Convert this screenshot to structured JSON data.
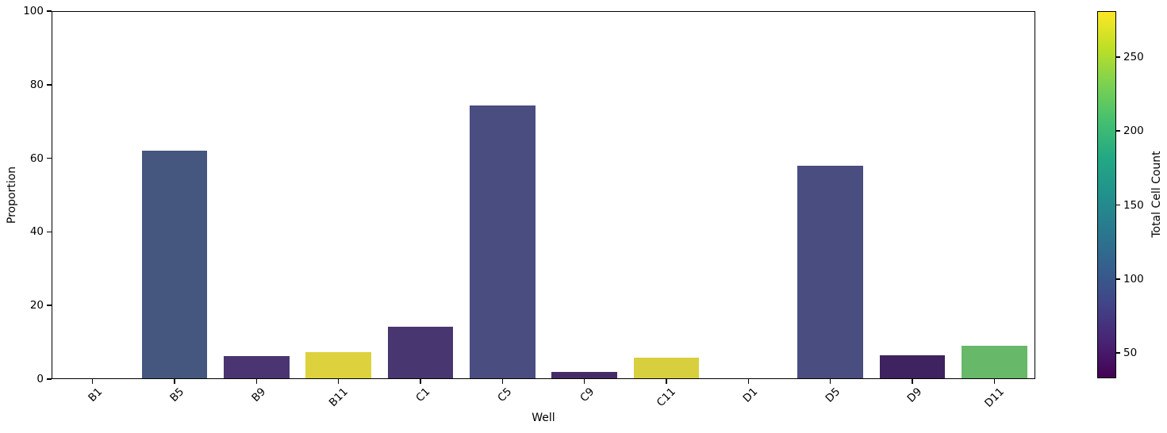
{
  "figure": {
    "background": "#ffffff"
  },
  "chart_data": {
    "type": "bar",
    "title": "",
    "xlabel": "Well",
    "ylabel": "Proportion",
    "ylim": [
      0,
      100
    ],
    "yticks": [
      0,
      20,
      40,
      60,
      80,
      100
    ],
    "categories": [
      "B1",
      "B5",
      "B9",
      "B11",
      "C1",
      "C5",
      "C9",
      "C11",
      "D1",
      "D5",
      "D9",
      "D11"
    ],
    "values": [
      0,
      62,
      6.2,
      7.3,
      14.2,
      74.3,
      1.9,
      5.9,
      0,
      58,
      6.5,
      9
    ],
    "bar_colors": [
      null,
      "#45577e",
      "#4a3572",
      "#ddd23d",
      "#483670",
      "#4a4d80",
      "#452c67",
      "#d8cf3e",
      null,
      "#4a4d80",
      "#3f2260",
      "#67b868"
    ],
    "bar_width_fraction": 0.8,
    "grid": false,
    "legend": null,
    "x_tick_rotation_deg": 45,
    "colorbar": {
      "label": "Total Cell Count",
      "ticks": [
        50,
        100,
        150,
        200,
        250
      ],
      "vmin": 33,
      "vmax": 281,
      "colormap": "viridis",
      "gradient_top_to_bottom": [
        "#fde725",
        "#bddf26",
        "#7ad151",
        "#44bf70",
        "#22a884",
        "#21918c",
        "#2a788e",
        "#355f8d",
        "#414487",
        "#482475",
        "#440154"
      ]
    }
  }
}
